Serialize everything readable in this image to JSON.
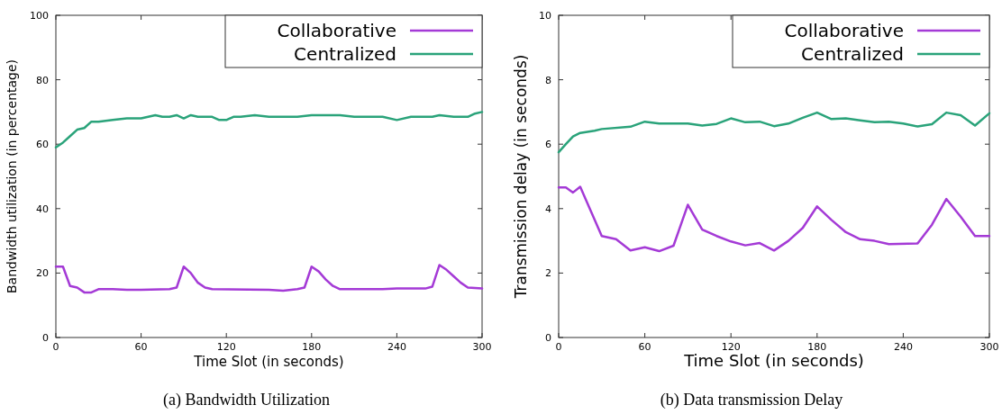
{
  "chart_data": [
    {
      "type": "line",
      "title": "(a)  Bandwidth Utilization",
      "xlabel": "Time Slot (in seconds)",
      "ylabel": "Bandwidth utilization (in percentage)",
      "xlim": [
        0,
        300
      ],
      "xticks": [
        0,
        60,
        120,
        180,
        240,
        300
      ],
      "ylim": [
        0,
        100
      ],
      "yticks": [
        0,
        20,
        40,
        60,
        80,
        100
      ],
      "legend": "top right",
      "grid": false,
      "marker": "none",
      "line_style": "solid",
      "series": [
        {
          "name": "Collaborative",
          "color": "#a43ad6",
          "x": [
            0,
            5,
            10,
            15,
            20,
            25,
            30,
            40,
            50,
            60,
            80,
            85,
            90,
            95,
            100,
            105,
            110,
            150,
            160,
            170,
            175,
            180,
            185,
            190,
            195,
            200,
            210,
            230,
            240,
            260,
            265,
            270,
            275,
            280,
            285,
            290,
            300
          ],
          "values": [
            22,
            22,
            16,
            15.5,
            14,
            14,
            15,
            15,
            14.8,
            14.8,
            15,
            15.5,
            22,
            20,
            17,
            15.5,
            15,
            14.8,
            14.5,
            15,
            15.5,
            22,
            20.5,
            18,
            16,
            15,
            15,
            15,
            15.2,
            15.2,
            15.8,
            22.5,
            21,
            19,
            17,
            15.5,
            15.2
          ]
        },
        {
          "name": "Centralized",
          "color": "#2aa37a",
          "x": [
            0,
            5,
            10,
            15,
            20,
            25,
            30,
            40,
            50,
            60,
            70,
            75,
            80,
            85,
            90,
            95,
            100,
            110,
            115,
            120,
            125,
            130,
            140,
            150,
            170,
            180,
            200,
            210,
            230,
            240,
            250,
            265,
            270,
            280,
            290,
            295,
            300
          ],
          "values": [
            59,
            60.5,
            62.5,
            64.5,
            65,
            67,
            67,
            67.5,
            68,
            68,
            69,
            68.5,
            68.5,
            69,
            68,
            69,
            68.5,
            68.5,
            67.5,
            67.5,
            68.5,
            68.5,
            69,
            68.5,
            68.5,
            69,
            69,
            68.5,
            68.5,
            67.5,
            68.5,
            68.5,
            69,
            68.5,
            68.5,
            69.5,
            70
          ]
        }
      ]
    },
    {
      "type": "line",
      "title": "(b)  Data transmission Delay",
      "xlabel": "Time Slot (in seconds)",
      "ylabel": "Transmission delay (in seconds)",
      "xlim": [
        0,
        300
      ],
      "xticks": [
        0,
        60,
        120,
        180,
        240,
        300
      ],
      "ylim": [
        0,
        10
      ],
      "yticks": [
        0,
        2,
        4,
        6,
        8,
        10
      ],
      "legend": "top right",
      "grid": false,
      "marker": "none",
      "line_style": "solid",
      "series": [
        {
          "name": "Collaborative",
          "color": "#a43ad6",
          "x": [
            0,
            5,
            10,
            15,
            30,
            40,
            50,
            60,
            70,
            80,
            90,
            100,
            110,
            120,
            130,
            140,
            150,
            160,
            170,
            180,
            190,
            200,
            210,
            220,
            230,
            250,
            260,
            270,
            280,
            290,
            300
          ],
          "values": [
            4.66,
            4.66,
            4.5,
            4.68,
            3.15,
            3.05,
            2.7,
            2.8,
            2.68,
            2.85,
            4.12,
            3.35,
            3.15,
            2.98,
            2.86,
            2.93,
            2.7,
            3.0,
            3.4,
            4.07,
            3.65,
            3.27,
            3.05,
            3.0,
            2.9,
            2.92,
            3.5,
            4.3,
            3.75,
            3.15,
            3.15
          ]
        },
        {
          "name": "Centralized",
          "color": "#2aa37a",
          "x": [
            0,
            5,
            10,
            15,
            25,
            30,
            50,
            60,
            70,
            90,
            100,
            110,
            120,
            130,
            140,
            150,
            160,
            170,
            180,
            190,
            200,
            210,
            220,
            230,
            240,
            250,
            260,
            270,
            280,
            290,
            300
          ],
          "values": [
            5.75,
            6.0,
            6.24,
            6.35,
            6.42,
            6.47,
            6.54,
            6.7,
            6.64,
            6.64,
            6.58,
            6.63,
            6.8,
            6.68,
            6.7,
            6.56,
            6.64,
            6.82,
            6.98,
            6.78,
            6.8,
            6.74,
            6.68,
            6.7,
            6.64,
            6.55,
            6.62,
            6.98,
            6.9,
            6.58,
            6.96
          ]
        }
      ]
    }
  ]
}
